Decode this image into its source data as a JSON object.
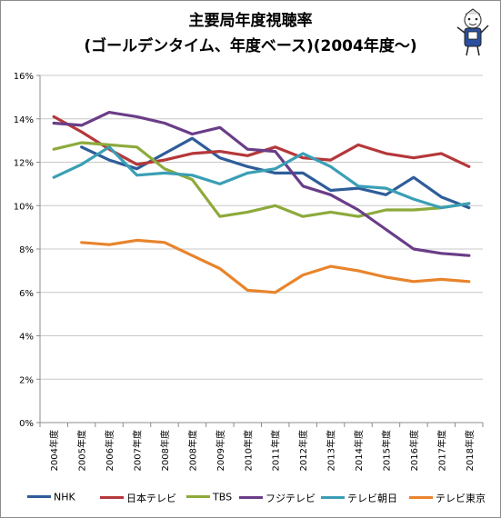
{
  "title_line1": "主要局年度視聴率",
  "title_line2": "(ゴールデンタイム、年度ベース)(2004年度〜)",
  "chart_data": {
    "type": "line",
    "categories": [
      "2004年度",
      "2005年度",
      "2006年度",
      "2007年度",
      "2008年度",
      "2008年度",
      "2009年度",
      "2010年度",
      "2011年度",
      "2012年度",
      "2013年度",
      "2014年度",
      "2015年度",
      "2016年度",
      "2017年度",
      "2018年度"
    ],
    "ylim": [
      0,
      16
    ],
    "y_ticks": [
      "0%",
      "2%",
      "4%",
      "6%",
      "8%",
      "10%",
      "12%",
      "14%",
      "16%"
    ],
    "grid": true,
    "legend_position": "bottom",
    "series": [
      {
        "name": "NHK",
        "color": "#2e5d99",
        "values": [
          null,
          12.7,
          12.1,
          11.7,
          12.4,
          13.1,
          12.2,
          11.8,
          11.5,
          11.5,
          10.7,
          10.8,
          10.5,
          11.3,
          10.4,
          9.9
        ]
      },
      {
        "name": "日本テレビ",
        "color": "#b5383a",
        "values": [
          14.1,
          13.4,
          12.6,
          11.9,
          12.1,
          12.4,
          12.5,
          12.3,
          12.7,
          12.2,
          12.1,
          12.8,
          12.4,
          12.2,
          12.4,
          11.8
        ]
      },
      {
        "name": "TBS",
        "color": "#8daa3b",
        "values": [
          12.6,
          12.9,
          12.8,
          12.7,
          11.7,
          11.2,
          9.5,
          9.7,
          10.0,
          9.5,
          9.7,
          9.5,
          9.8,
          9.8,
          9.9,
          10.1
        ]
      },
      {
        "name": "フジテレビ",
        "color": "#6a3d88",
        "values": [
          13.8,
          13.7,
          14.3,
          14.1,
          13.8,
          13.3,
          13.6,
          12.6,
          12.5,
          10.9,
          10.5,
          9.8,
          8.9,
          8.0,
          7.8,
          7.7
        ]
      },
      {
        "name": "テレビ朝日",
        "color": "#3a9fb5",
        "values": [
          11.3,
          11.9,
          12.7,
          11.4,
          11.5,
          11.4,
          11.0,
          11.5,
          11.7,
          12.4,
          11.8,
          10.9,
          10.8,
          10.3,
          9.9,
          10.1
        ]
      },
      {
        "name": "テレビ東京",
        "color": "#e8842c",
        "values": [
          null,
          8.3,
          8.2,
          8.4,
          8.3,
          7.7,
          7.1,
          6.1,
          6.0,
          6.8,
          7.2,
          7.0,
          6.7,
          6.5,
          6.6,
          6.5
        ]
      }
    ]
  }
}
